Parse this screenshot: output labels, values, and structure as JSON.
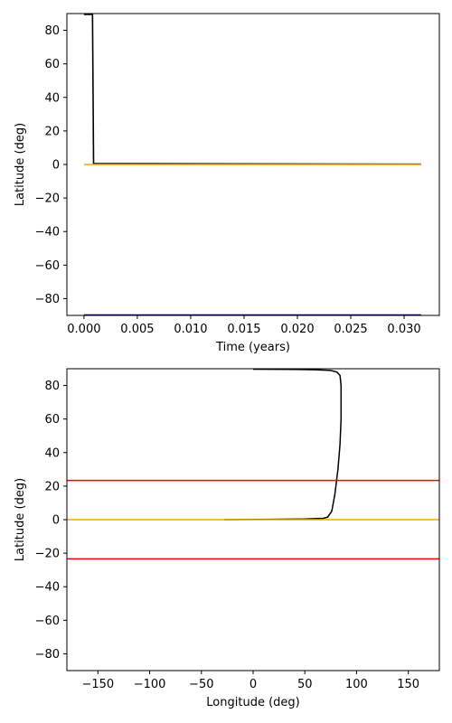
{
  "chart_data": [
    {
      "type": "line",
      "xlabel": "Time (years)",
      "ylabel": "Latitude (deg)",
      "xlim": [
        -0.0016,
        0.0333
      ],
      "ylim": [
        -90,
        90
      ],
      "xticks": [
        0.0,
        0.005,
        0.01,
        0.015,
        0.02,
        0.025,
        0.03
      ],
      "xtick_labels": [
        "0.000",
        "0.005",
        "0.010",
        "0.015",
        "0.020",
        "0.025",
        "0.030"
      ],
      "yticks": [
        -80,
        -60,
        -40,
        -20,
        0,
        20,
        40,
        60,
        80
      ],
      "ytick_labels": [
        "−80",
        "−60",
        "−40",
        "−20",
        "0",
        "20",
        "40",
        "60",
        "80"
      ],
      "grid": false,
      "series": [
        {
          "color": "#000000",
          "points": [
            [
              0.0,
              89.5
            ],
            [
              0.0008,
              89.5
            ],
            [
              0.0009,
              0.5
            ],
            [
              0.0316,
              0.2
            ]
          ]
        },
        {
          "color": "#FFA500",
          "points": [
            [
              0.0,
              0.0
            ],
            [
              0.0316,
              0.0
            ]
          ]
        },
        {
          "color": "#00008B",
          "points": [
            [
              0.0,
              -89.7
            ],
            [
              0.0316,
              -89.7
            ]
          ]
        }
      ]
    },
    {
      "type": "line",
      "xlabel": "Longitude (deg)",
      "ylabel": "Latitude (deg)",
      "xlim": [
        -180,
        180
      ],
      "ylim": [
        -90,
        90
      ],
      "xticks": [
        -150,
        -100,
        -50,
        0,
        50,
        100,
        150
      ],
      "xtick_labels": [
        "−150",
        "−100",
        "−50",
        "0",
        "50",
        "100",
        "150"
      ],
      "yticks": [
        -80,
        -60,
        -40,
        -20,
        0,
        20,
        40,
        60,
        80
      ],
      "ytick_labels": [
        "−80",
        "−60",
        "−40",
        "−20",
        "0",
        "20",
        "40",
        "60",
        "80"
      ],
      "grid": false,
      "series": [
        {
          "color": "#000000",
          "points": [
            [
              0,
              89.7
            ],
            [
              40,
              89.6
            ],
            [
              60,
              89.4
            ],
            [
              75,
              89.0
            ],
            [
              81,
              88.0
            ],
            [
              84,
              86.0
            ],
            [
              85,
              80.0
            ],
            [
              85,
              60.0
            ],
            [
              84,
              45.0
            ],
            [
              82,
              30.0
            ],
            [
              79,
              15.0
            ],
            [
              76,
              5.0
            ],
            [
              72,
              1.5
            ],
            [
              68,
              0.8
            ],
            [
              50,
              0.4
            ],
            [
              20,
              0.2
            ],
            [
              -28,
              0.0
            ]
          ]
        },
        {
          "color": "#FFA500",
          "points": [
            [
              -180,
              0.0
            ],
            [
              180,
              0.0
            ]
          ]
        },
        {
          "color": "#FF0000",
          "points": [
            [
              -180,
              23.4
            ],
            [
              180,
              23.4
            ]
          ]
        },
        {
          "color": "#FF0000",
          "points": [
            [
              -180,
              -23.4
            ],
            [
              180,
              -23.4
            ]
          ]
        }
      ]
    }
  ]
}
